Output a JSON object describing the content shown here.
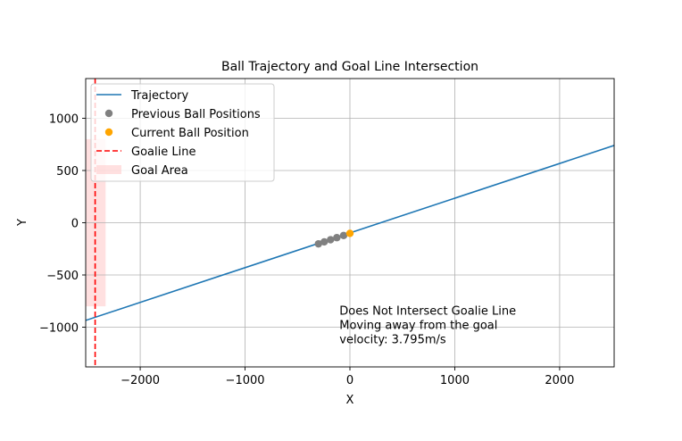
{
  "chart_data": {
    "type": "line",
    "title": "Ball Trajectory and Goal Line Intersection",
    "xlabel": "X",
    "ylabel": "Y",
    "xlim": [
      -2520,
      2520
    ],
    "ylim": [
      -1380,
      1380
    ],
    "xticks": [
      {
        "value": -2000,
        "label": "−2000"
      },
      {
        "value": -1000,
        "label": "−1000"
      },
      {
        "value": 0,
        "label": "0"
      },
      {
        "value": 1000,
        "label": "1000"
      },
      {
        "value": 2000,
        "label": "2000"
      }
    ],
    "yticks": [
      {
        "value": 1000,
        "label": "1000"
      },
      {
        "value": 500,
        "label": "500"
      },
      {
        "value": 0,
        "label": "0"
      },
      {
        "value": -500,
        "label": "−500"
      },
      {
        "value": -1000,
        "label": "−1000"
      }
    ],
    "grid": true,
    "legend_position": "top-left",
    "series": [
      {
        "name": "Trajectory",
        "kind": "line",
        "color": "#1f77b4",
        "x": [
          -2520,
          2520
        ],
        "y": [
          -935,
          740
        ]
      },
      {
        "name": "Previous Ball Positions",
        "kind": "scatter",
        "color": "#808080",
        "x": [
          -300,
          -245,
          -185,
          -125,
          -60
        ],
        "y": [
          -202,
          -183,
          -163,
          -143,
          -122
        ]
      },
      {
        "name": "Current Ball Position",
        "kind": "scatter",
        "color": "#ffa500",
        "x": [
          0
        ],
        "y": [
          -102
        ]
      },
      {
        "name": "Goalie Line",
        "kind": "vline",
        "color": "#ff0000",
        "x": -2430
      },
      {
        "name": "Goal Area",
        "kind": "rect",
        "color": "#ffcccc",
        "x": [
          -2520,
          -2330
        ],
        "y": [
          -800,
          800
        ]
      }
    ],
    "annotation": {
      "lines": [
        "Does Not Intersect Goalie Line",
        "Moving away from the goal",
        "velocity: 3.795m/s"
      ],
      "color": "#008000",
      "x": -100,
      "y": -880
    }
  }
}
